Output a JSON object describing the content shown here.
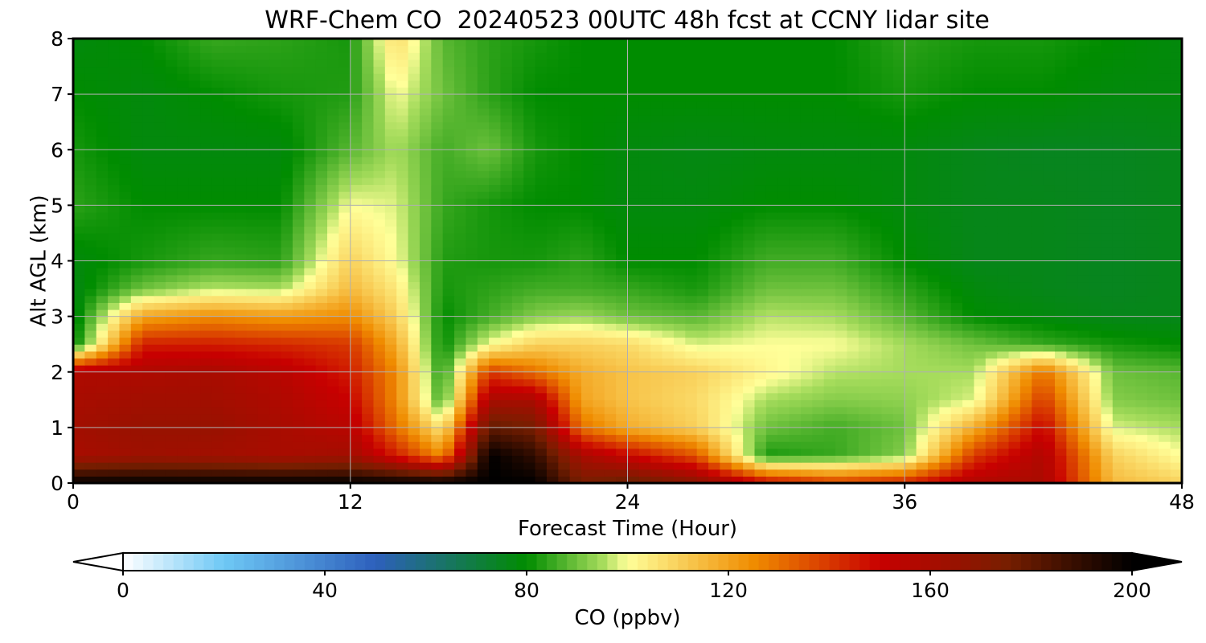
{
  "chart_data": {
    "type": "heatmap",
    "title": "WRF-Chem CO  20240523 00UTC 48h fcst at CCNY lidar site",
    "xlabel": "Forecast Time (Hour)",
    "ylabel": "Alt AGL (km)",
    "xlim": [
      0,
      48
    ],
    "ylim": [
      0,
      8
    ],
    "xticks": [
      0,
      12,
      24,
      36,
      48
    ],
    "yticks": [
      0,
      1,
      2,
      3,
      4,
      5,
      6,
      7,
      8
    ],
    "grid": true,
    "x": [
      0,
      3,
      6,
      9,
      12,
      14,
      16,
      18,
      20,
      22,
      24,
      27,
      30,
      33,
      36,
      39,
      42,
      45,
      48
    ],
    "y": [
      0,
      0.5,
      1,
      1.5,
      2,
      2.5,
      3,
      3.5,
      4,
      5,
      6,
      7,
      8
    ],
    "z_unit": "ppbv",
    "z_rows_by_altitude": [
      [
        200,
        200,
        200,
        200,
        200,
        200,
        200,
        200,
        200,
        175,
        180,
        170,
        150,
        140,
        145,
        158,
        160,
        115,
        110
      ],
      [
        160,
        163,
        162,
        160,
        162,
        145,
        125,
        200,
        190,
        160,
        150,
        135,
        82,
        85,
        92,
        140,
        158,
        110,
        100
      ],
      [
        162,
        165,
        165,
        160,
        155,
        130,
        105,
        180,
        175,
        130,
        118,
        110,
        90,
        86,
        90,
        118,
        150,
        98,
        95
      ],
      [
        160,
        162,
        162,
        158,
        150,
        125,
        85,
        160,
        160,
        120,
        113,
        108,
        95,
        92,
        93,
        98,
        140,
        92,
        90
      ],
      [
        158,
        158,
        160,
        155,
        145,
        125,
        82,
        140,
        130,
        118,
        113,
        110,
        102,
        96,
        95,
        95,
        130,
        90,
        88
      ],
      [
        78,
        145,
        145,
        143,
        140,
        118,
        80,
        100,
        110,
        110,
        108,
        98,
        100,
        100,
        95,
        90,
        85,
        82,
        80
      ],
      [
        76,
        120,
        125,
        122,
        125,
        110,
        80,
        86,
        92,
        94,
        90,
        88,
        96,
        95,
        88,
        80,
        78,
        76,
        76
      ],
      [
        77,
        90,
        96,
        95,
        115,
        105,
        82,
        84,
        86,
        86,
        85,
        82,
        90,
        90,
        84,
        78,
        76,
        75,
        76
      ],
      [
        78,
        82,
        85,
        84,
        110,
        100,
        83,
        82,
        82,
        84,
        80,
        80,
        86,
        86,
        80,
        76,
        76,
        75,
        76
      ],
      [
        84,
        80,
        80,
        80,
        100,
        98,
        85,
        82,
        80,
        80,
        78,
        78,
        80,
        80,
        78,
        76,
        76,
        75,
        76
      ],
      [
        82,
        78,
        78,
        78,
        88,
        95,
        86,
        90,
        82,
        80,
        78,
        77,
        78,
        78,
        78,
        76,
        75,
        75,
        76
      ],
      [
        80,
        78,
        80,
        82,
        83,
        100,
        90,
        84,
        80,
        80,
        80,
        80,
        80,
        80,
        82,
        80,
        80,
        78,
        78
      ],
      [
        78,
        80,
        85,
        84,
        82,
        108,
        88,
        84,
        82,
        80,
        80,
        80,
        80,
        80,
        84,
        82,
        82,
        80,
        78
      ]
    ],
    "colorbar": {
      "label": "CO  (ppbv)",
      "min": 0,
      "max": 200,
      "ticks": [
        0,
        40,
        80,
        120,
        160,
        200
      ],
      "extend": "both",
      "stops": [
        {
          "value": 0,
          "color": "#ffffff"
        },
        {
          "value": 20,
          "color": "#6ec8f5"
        },
        {
          "value": 50,
          "color": "#2d5fbc"
        },
        {
          "value": 80,
          "color": "#008c00"
        },
        {
          "value": 95,
          "color": "#a6dc5c"
        },
        {
          "value": 100,
          "color": "#ffff99"
        },
        {
          "value": 125,
          "color": "#f08c00"
        },
        {
          "value": 150,
          "color": "#c80000"
        },
        {
          "value": 175,
          "color": "#781e00"
        },
        {
          "value": 200,
          "color": "#000000"
        }
      ]
    }
  }
}
